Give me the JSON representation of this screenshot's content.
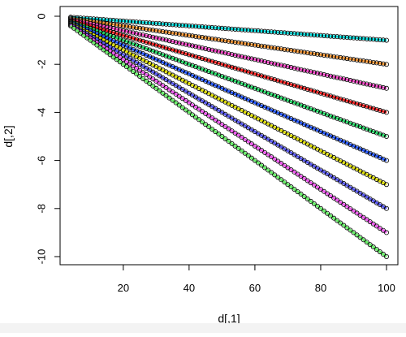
{
  "chart_data": {
    "type": "scatter",
    "xlabel": "d[,1]",
    "ylabel": "d[,2]",
    "xlim": [
      4,
      100
    ],
    "ylim": [
      -10,
      0
    ],
    "x_ticks": [
      "20",
      "40",
      "60",
      "80",
      "100"
    ],
    "y_ticks": [
      "0",
      "-2",
      "-4",
      "-6",
      "-8",
      "-10"
    ],
    "x_tick_values": [
      20,
      40,
      60,
      80,
      100
    ],
    "y_tick_values": [
      0,
      -2,
      -4,
      -6,
      -8,
      -10
    ],
    "grid": false,
    "legend": "none",
    "point_style": "open circles with colored connecting lines",
    "series": [
      {
        "color": "#00e5e5",
        "x_range": [
          4,
          100
        ],
        "y_range": [
          -0.04,
          -1
        ]
      },
      {
        "color": "#ff9933",
        "x_range": [
          4,
          100
        ],
        "y_range": [
          -0.08,
          -2
        ]
      },
      {
        "color": "#ff44cc",
        "x_range": [
          4,
          100
        ],
        "y_range": [
          -0.12,
          -3
        ]
      },
      {
        "color": "#ff2222",
        "x_range": [
          4,
          100
        ],
        "y_range": [
          -0.16,
          -4
        ]
      },
      {
        "color": "#22dd66",
        "x_range": [
          4,
          100
        ],
        "y_range": [
          -0.2,
          -5
        ]
      },
      {
        "color": "#2255ff",
        "x_range": [
          4,
          100
        ],
        "y_range": [
          -0.24,
          -6
        ]
      },
      {
        "color": "#dddd00",
        "x_range": [
          4,
          100
        ],
        "y_range": [
          -0.28,
          -7
        ]
      },
      {
        "color": "#5555ee",
        "x_range": [
          4,
          100
        ],
        "y_range": [
          -0.32,
          -8
        ]
      },
      {
        "color": "#ee55ee",
        "x_range": [
          4,
          100
        ],
        "y_range": [
          -0.36,
          -9
        ]
      },
      {
        "color": "#66ee66",
        "x_range": [
          4,
          100
        ],
        "y_range": [
          -0.4,
          -10
        ]
      }
    ],
    "points_per_series": 97
  }
}
